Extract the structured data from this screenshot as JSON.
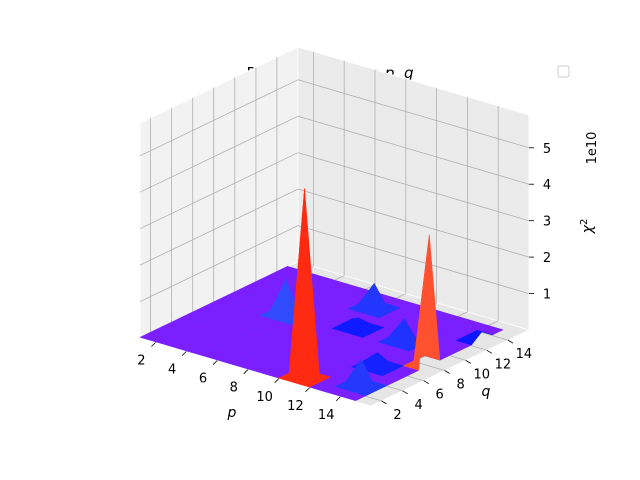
{
  "chart_data": {
    "type": "surface3d",
    "title": "Prikaz χ² od izbire p, q",
    "title_parts": {
      "lead": "Prikaz ",
      "chi": "χ",
      "sup": "2",
      "mid": " od izbire ",
      "p": "p",
      "sep": ", ",
      "q": "q"
    },
    "xlabel": "p",
    "ylabel": "q",
    "zlabel": {
      "chi": "χ",
      "sup": "2"
    },
    "z_offset_label": "1e10",
    "x_ticks": [
      "2",
      "4",
      "6",
      "8",
      "10",
      "12",
      "14"
    ],
    "y_ticks": [
      "2",
      "4",
      "6",
      "8",
      "10",
      "12",
      "14"
    ],
    "z_ticks": [
      "1",
      "2",
      "3",
      "4",
      "5"
    ],
    "xlim": [
      1,
      16
    ],
    "ylim": [
      1,
      16
    ],
    "zlim": [
      0,
      5.9
    ],
    "colormap": "rainbow",
    "legend": "empty box, top-right",
    "grid": true,
    "peaks_1e10": [
      {
        "p": 11,
        "q": 2,
        "value": 5.2
      },
      {
        "p": 15,
        "q": 8,
        "value": 3.6
      },
      {
        "p": 5,
        "q": 9,
        "value": 1.0
      },
      {
        "p": 14,
        "q": 3,
        "value": 0.75
      },
      {
        "p": 12,
        "q": 10,
        "value": 0.65
      },
      {
        "p": 8,
        "q": 13,
        "value": 0.7
      },
      {
        "p": 13,
        "q": 6,
        "value": 0.4
      },
      {
        "p": 9,
        "q": 10,
        "value": 0.3
      },
      {
        "p": 15,
        "q": 13,
        "value": 0.25
      }
    ],
    "baseline_1e10": 0.02
  }
}
